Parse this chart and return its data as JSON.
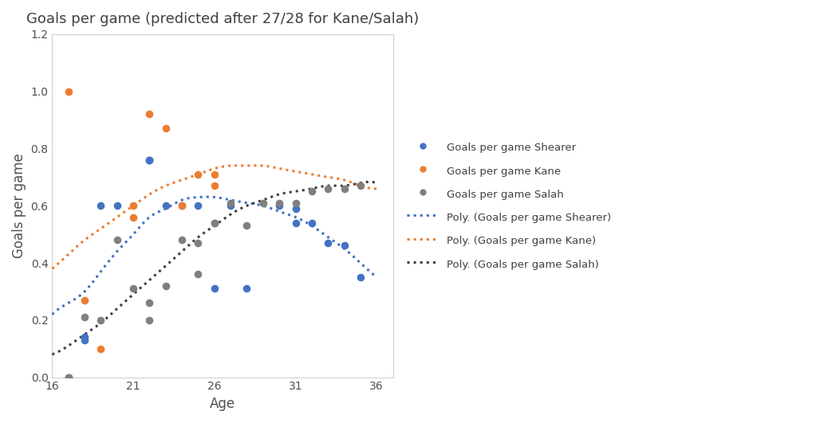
{
  "title": "Goals per game (predicted after 27/28 for Kane/Salah)",
  "xlabel": "Age",
  "ylabel": "Goals per game",
  "xlim": [
    16,
    37
  ],
  "ylim": [
    0,
    1.2
  ],
  "xticks": [
    16,
    21,
    26,
    31,
    36
  ],
  "yticks": [
    0,
    0.2,
    0.4,
    0.6,
    0.8,
    1.0,
    1.2
  ],
  "shearer_x": [
    17,
    17,
    18,
    18,
    19,
    20,
    22,
    22,
    22,
    23,
    24,
    25,
    26,
    27,
    28,
    30,
    31,
    31,
    32,
    33,
    34,
    35
  ],
  "shearer_y": [
    0.0,
    0.0,
    0.13,
    0.14,
    0.6,
    0.6,
    0.76,
    0.76,
    0.76,
    0.6,
    0.6,
    0.6,
    0.31,
    0.6,
    0.31,
    0.6,
    0.59,
    0.54,
    0.54,
    0.47,
    0.46,
    0.35
  ],
  "kane_x": [
    17,
    18,
    19,
    21,
    21,
    22,
    23,
    24,
    25,
    26,
    26
  ],
  "kane_y": [
    1.0,
    0.27,
    0.1,
    0.6,
    0.56,
    0.92,
    0.87,
    0.6,
    0.71,
    0.71,
    0.67
  ],
  "salah_x": [
    17,
    18,
    19,
    20,
    21,
    22,
    22,
    23,
    24,
    25,
    25,
    26,
    26,
    27,
    28,
    29,
    30,
    31,
    32,
    33,
    34,
    35
  ],
  "salah_y": [
    0.0,
    0.21,
    0.2,
    0.48,
    0.31,
    0.2,
    0.26,
    0.32,
    0.48,
    0.47,
    0.36,
    0.54,
    0.54,
    0.61,
    0.53,
    0.61,
    0.61,
    0.61,
    0.65,
    0.66,
    0.66,
    0.67
  ],
  "color_shearer": "#4472C4",
  "color_kane": "#ED7D31",
  "color_salah": "#7F7F7F",
  "background_color": "#FFFFFF",
  "grid_color": "#FFFFFF",
  "spine_color": "#D0D0D0",
  "shearer_curve_x": [
    16,
    17,
    18,
    19,
    20,
    21,
    22,
    23,
    24,
    25,
    26,
    27,
    28,
    29,
    30,
    31,
    32,
    33,
    34,
    35,
    36
  ],
  "shearer_curve_y": [
    0.22,
    0.26,
    0.3,
    0.37,
    0.44,
    0.5,
    0.56,
    0.59,
    0.62,
    0.63,
    0.63,
    0.62,
    0.61,
    0.6,
    0.58,
    0.56,
    0.53,
    0.49,
    0.45,
    0.4,
    0.35
  ],
  "kane_curve_x": [
    16,
    17,
    18,
    19,
    20,
    21,
    22,
    23,
    24,
    25,
    26,
    27,
    28,
    29,
    30,
    31,
    32,
    33,
    34,
    35,
    36
  ],
  "kane_curve_y": [
    0.38,
    0.43,
    0.48,
    0.52,
    0.56,
    0.6,
    0.64,
    0.67,
    0.69,
    0.71,
    0.73,
    0.74,
    0.74,
    0.74,
    0.73,
    0.72,
    0.71,
    0.7,
    0.69,
    0.67,
    0.66
  ],
  "salah_curve_x": [
    16,
    17,
    18,
    19,
    20,
    21,
    22,
    23,
    24,
    25,
    26,
    27,
    28,
    29,
    30,
    31,
    32,
    33,
    34,
    35,
    36
  ],
  "salah_curve_y": [
    0.08,
    0.11,
    0.15,
    0.19,
    0.24,
    0.29,
    0.34,
    0.39,
    0.44,
    0.49,
    0.53,
    0.57,
    0.6,
    0.62,
    0.64,
    0.65,
    0.66,
    0.67,
    0.67,
    0.68,
    0.68
  ],
  "legend_labels": [
    "Goals per game Shearer",
    "Goals per game Kane",
    "Goals per game Salah",
    "Poly. (Goals per game Shearer)",
    "Poly. (Goals per game Kane)",
    "Poly. (Goals per game Salah)"
  ]
}
